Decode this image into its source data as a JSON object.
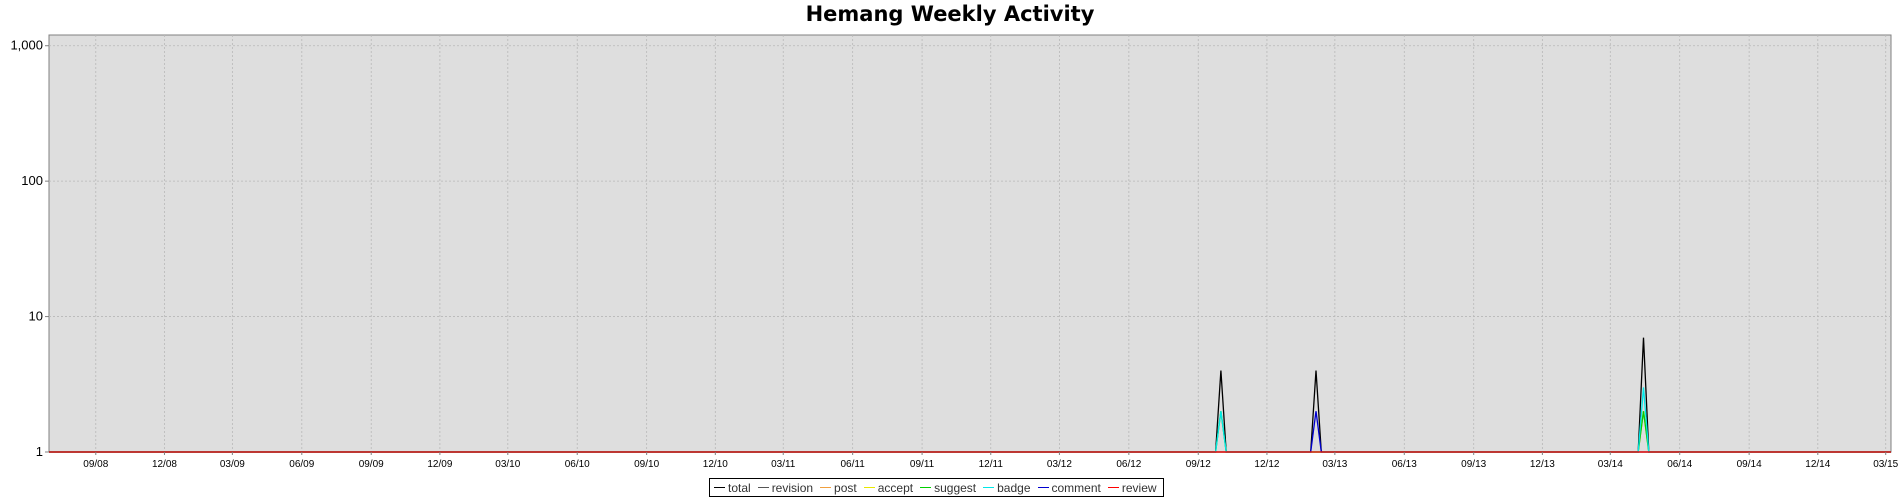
{
  "chart_data": {
    "type": "line",
    "title": "Hemang Weekly Activity",
    "xlabel": "",
    "ylabel": "",
    "y_scale": "log",
    "ylim": [
      1,
      1200
    ],
    "y_ticks": [
      1,
      10,
      100,
      1000
    ],
    "y_tick_labels": [
      "1",
      "10",
      "100",
      "1,000"
    ],
    "x_range": [
      "2008-07-01",
      "2015-03-08"
    ],
    "x_ticks": [
      {
        "date": "2008-09-01",
        "label": "09/08"
      },
      {
        "date": "2008-12-01",
        "label": "12/08"
      },
      {
        "date": "2009-03-01",
        "label": "03/09"
      },
      {
        "date": "2009-06-01",
        "label": "06/09"
      },
      {
        "date": "2009-09-01",
        "label": "09/09"
      },
      {
        "date": "2009-12-01",
        "label": "12/09"
      },
      {
        "date": "2010-03-01",
        "label": "03/10"
      },
      {
        "date": "2010-06-01",
        "label": "06/10"
      },
      {
        "date": "2010-09-01",
        "label": "09/10"
      },
      {
        "date": "2010-12-01",
        "label": "12/10"
      },
      {
        "date": "2011-03-01",
        "label": "03/11"
      },
      {
        "date": "2011-06-01",
        "label": "06/11"
      },
      {
        "date": "2011-09-01",
        "label": "09/11"
      },
      {
        "date": "2011-12-01",
        "label": "12/11"
      },
      {
        "date": "2012-03-01",
        "label": "03/12"
      },
      {
        "date": "2012-06-01",
        "label": "06/12"
      },
      {
        "date": "2012-09-01",
        "label": "09/12"
      },
      {
        "date": "2012-12-01",
        "label": "12/12"
      },
      {
        "date": "2013-03-01",
        "label": "03/13"
      },
      {
        "date": "2013-06-01",
        "label": "06/13"
      },
      {
        "date": "2013-09-01",
        "label": "09/13"
      },
      {
        "date": "2013-12-01",
        "label": "12/13"
      },
      {
        "date": "2014-03-01",
        "label": "03/14"
      },
      {
        "date": "2014-06-01",
        "label": "06/14"
      },
      {
        "date": "2014-09-01",
        "label": "09/14"
      },
      {
        "date": "2014-12-01",
        "label": "12/14"
      },
      {
        "date": "2015-03-01",
        "label": "03/15"
      }
    ],
    "grid": true,
    "legend_position": "bottom",
    "series": [
      {
        "name": "total",
        "color": "#000000",
        "points": [
          [
            "2012-09-24",
            1
          ],
          [
            "2012-10-01",
            4
          ],
          [
            "2012-10-08",
            1
          ],
          [
            "2013-01-28",
            1
          ],
          [
            "2013-02-04",
            4
          ],
          [
            "2013-02-11",
            1
          ],
          [
            "2014-04-07",
            1
          ],
          [
            "2014-04-14",
            7
          ],
          [
            "2014-04-21",
            1
          ]
        ]
      },
      {
        "name": "revision",
        "color": "#555555",
        "points": []
      },
      {
        "name": "post",
        "color": "#f0a040",
        "points": [
          [
            "2014-04-07",
            1
          ],
          [
            "2014-04-14",
            2
          ],
          [
            "2014-04-21",
            1
          ]
        ]
      },
      {
        "name": "accept",
        "color": "#e8e800",
        "points": []
      },
      {
        "name": "suggest",
        "color": "#00d000",
        "points": [
          [
            "2012-09-24",
            1
          ],
          [
            "2012-10-01",
            2
          ],
          [
            "2012-10-08",
            1
          ],
          [
            "2014-04-07",
            1
          ],
          [
            "2014-04-14",
            2
          ],
          [
            "2014-04-21",
            1
          ]
        ]
      },
      {
        "name": "badge",
        "color": "#00e8e8",
        "points": [
          [
            "2012-09-24",
            1
          ],
          [
            "2012-10-01",
            2
          ],
          [
            "2012-10-08",
            1
          ],
          [
            "2014-04-07",
            1
          ],
          [
            "2014-04-14",
            3
          ],
          [
            "2014-04-21",
            1
          ]
        ]
      },
      {
        "name": "comment",
        "color": "#0000d0",
        "points": [
          [
            "2013-01-28",
            1
          ],
          [
            "2013-02-04",
            2
          ],
          [
            "2013-02-11",
            1
          ]
        ]
      },
      {
        "name": "review",
        "color": "#ff0000",
        "points": []
      }
    ]
  }
}
